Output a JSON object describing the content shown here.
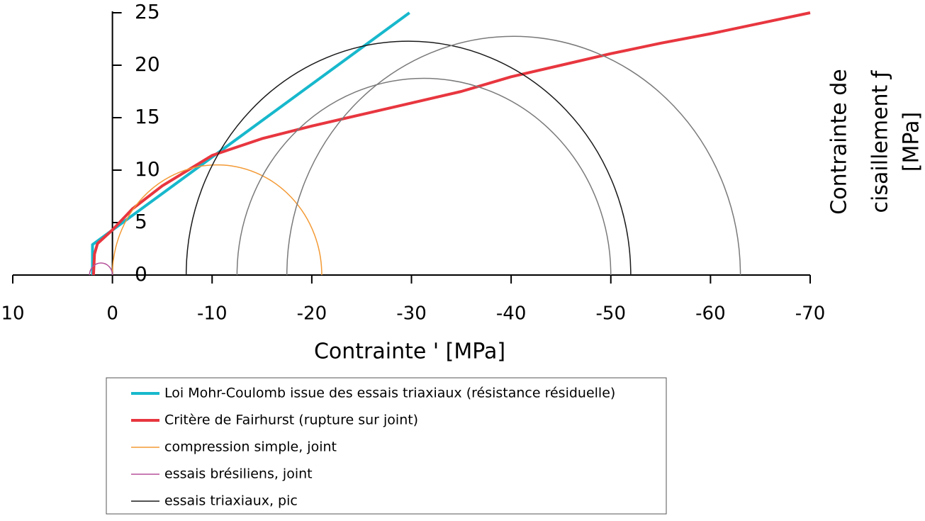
{
  "chart_data": {
    "type": "line",
    "xlabel": "Contrainte    '  [MPa]",
    "ylabel_lines": [
      "Contrainte de",
      "cisaillement ƒ",
      "[MPa]"
    ],
    "xlim": [
      10,
      -70
    ],
    "xticks": [
      10,
      0,
      -10,
      -20,
      -30,
      -40,
      -50,
      -60,
      -70
    ],
    "ylim": [
      0,
      25
    ],
    "yticks": [
      0,
      5,
      10,
      15,
      20,
      25
    ],
    "series": [
      {
        "name": "Loi Mohr-Coulomb issue des essais triaxiaux (résistance résiduelle)",
        "color": "#17b8cc",
        "width": 4,
        "x": [
          2,
          2,
          -29.8
        ],
        "values": [
          0,
          2.9,
          25
        ]
      },
      {
        "name": "Critère de Fairhurst (rupture sur joint)",
        "color": "#e8363f",
        "width": 4,
        "x": [
          1.9,
          1.8,
          1.5,
          0,
          -2,
          -5,
          -10,
          -15,
          -20,
          -25,
          -30,
          -35,
          -40,
          -45,
          -50,
          -55,
          -60,
          -65,
          -70
        ],
        "values": [
          0,
          2,
          3,
          4.3,
          6.3,
          8.5,
          11.4,
          13,
          14.2,
          15.3,
          16.4,
          17.5,
          18.9,
          20,
          21.1,
          22.1,
          23,
          24,
          25
        ]
      },
      {
        "name": "compression simple, joint",
        "color": "#f39a35",
        "width": 1.5,
        "circle": [
          0,
          -21
        ]
      },
      {
        "name": "essais brésiliens, joint",
        "color": "#b5509a",
        "width": 1.5,
        "circle": [
          2.3,
          0
        ]
      },
      {
        "name": "essais triaxiaux, pic",
        "color": "#1a1a1a",
        "width": 1.5,
        "circle": [
          -7.4,
          -52
        ]
      },
      {
        "color": "#7a7a7a",
        "width": 1.5,
        "circle": [
          -12.5,
          -50
        ]
      },
      {
        "color": "#7a7a7a",
        "width": 1.5,
        "circle": [
          -17.5,
          -63
        ]
      }
    ]
  }
}
